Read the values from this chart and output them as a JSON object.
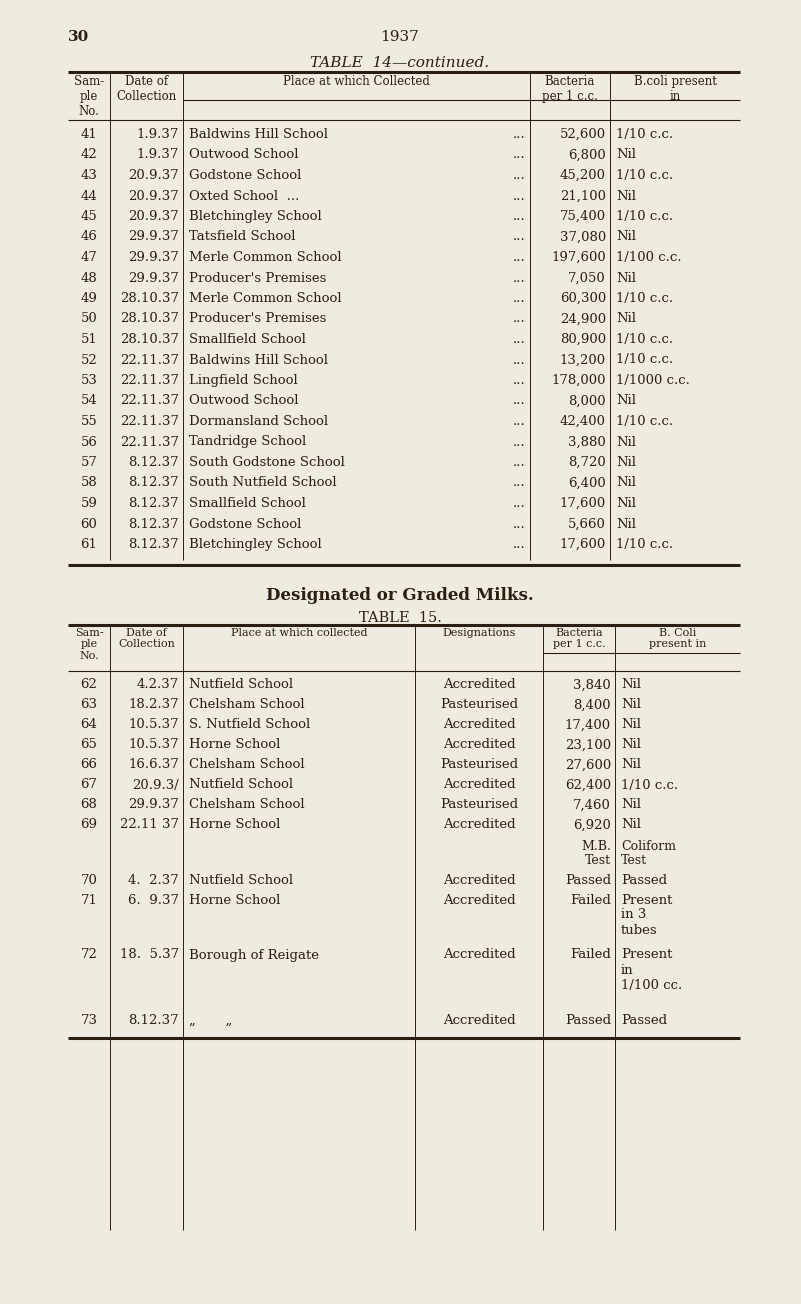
{
  "bg_color": "#f0ebe0",
  "text_color": "#2a1f10",
  "page_number": "30",
  "year": "1937",
  "table14_title": "TABLE  14—continued.",
  "table14_rows": [
    [
      "41",
      "1.9.37",
      "Baldwins Hill School",
      "52,600",
      "1/10 c.c."
    ],
    [
      "42",
      "1.9.37",
      "Outwood School",
      "6,800",
      "Nil"
    ],
    [
      "43",
      "20.9.37",
      "Godstone School",
      "45,200",
      "1/10 c.c."
    ],
    [
      "44",
      "20.9.37",
      "Oxted School  ...",
      "21,100",
      "Nil"
    ],
    [
      "45",
      "20.9.37",
      "Bletchingley School",
      "75,400",
      "1/10 c.c."
    ],
    [
      "46",
      "29.9.37",
      "Tatsfield School",
      "37,080",
      "Nil"
    ],
    [
      "47",
      "29.9.37",
      "Merle Common School",
      "197,600",
      "1/100 c.c."
    ],
    [
      "48",
      "29.9.37",
      "Producer's Premises",
      "7,050",
      "Nil"
    ],
    [
      "49",
      "28.10.37",
      "Merle Common School",
      "60,300",
      "1/10 c.c."
    ],
    [
      "50",
      "28.10.37",
      "Producer's Premises",
      "24,900",
      "Nil"
    ],
    [
      "51",
      "28.10.37",
      "Smallfield School",
      "80,900",
      "1/10 c.c."
    ],
    [
      "52",
      "22.11.37",
      "Baldwins Hill School",
      "13,200",
      "1/10 c.c."
    ],
    [
      "53",
      "22.11.37",
      "Lingfield School",
      "178,000",
      "1/1000 c.c."
    ],
    [
      "54",
      "22.11.37",
      "Outwood School",
      "8,000",
      "Nil"
    ],
    [
      "55",
      "22.11.37",
      "Dormansland School",
      "42,400",
      "1/10 c.c."
    ],
    [
      "56",
      "22.11.37",
      "Tandridge School",
      "3,880",
      "Nil"
    ],
    [
      "57",
      "8.12.37",
      "South Godstone School",
      "8,720",
      "Nil"
    ],
    [
      "58",
      "8.12.37",
      "South Nutfield School",
      "6,400",
      "Nil"
    ],
    [
      "59",
      "8.12.37",
      "Smallfield School",
      "17,600",
      "Nil"
    ],
    [
      "60",
      "8.12.37",
      "Godstone School",
      "5,660",
      "Nil"
    ],
    [
      "61",
      "8.12.37",
      "Bletchingley School",
      "17,600",
      "1/10 c.c."
    ]
  ],
  "section_title": "Designated or Graded Milks.",
  "table15_title": "TABLE  15.",
  "table15_rows": [
    [
      "62",
      "4.2.37",
      "Nutfield School",
      "Accredited",
      "3,840",
      "Nil"
    ],
    [
      "63",
      "18.2.37",
      "Chelsham School",
      "Pasteurised",
      "8,400",
      "Nil"
    ],
    [
      "64",
      "10.5.37",
      "S. Nutfield School",
      "Accredited",
      "17,400",
      "Nil"
    ],
    [
      "65",
      "10.5.37",
      "Horne School",
      "Accredited",
      "23,100",
      "Nil"
    ],
    [
      "66",
      "16.6.37",
      "Chelsham School",
      "Pasteurised",
      "27,600",
      "Nil"
    ],
    [
      "67",
      "20.9.3/",
      "Nutfield School",
      "Accredited",
      "62,400",
      "1/10 c.c."
    ],
    [
      "68",
      "29.9.37",
      "Chelsham School",
      "Pasteurised",
      "7,460",
      "Nil"
    ],
    [
      "69",
      "22.11 37",
      "Horne School",
      "Accredited",
      "6,920",
      "Nil"
    ],
    [
      "70",
      "4.  2.37",
      "Nutfield School",
      "Accredited",
      "Passed",
      "Passed"
    ],
    [
      "71",
      "6.  9.37",
      "Horne School",
      "Accredited",
      "Failed",
      "Present\nin 3\ntubes"
    ],
    [
      "72",
      "18.  5.37",
      "Borough of Reigate",
      "Accredited",
      "Failed",
      "Present\nin\n1/100 cc."
    ],
    [
      "73",
      "8.12.37",
      "„       „",
      "Accredited",
      "Passed",
      "Passed"
    ]
  ]
}
